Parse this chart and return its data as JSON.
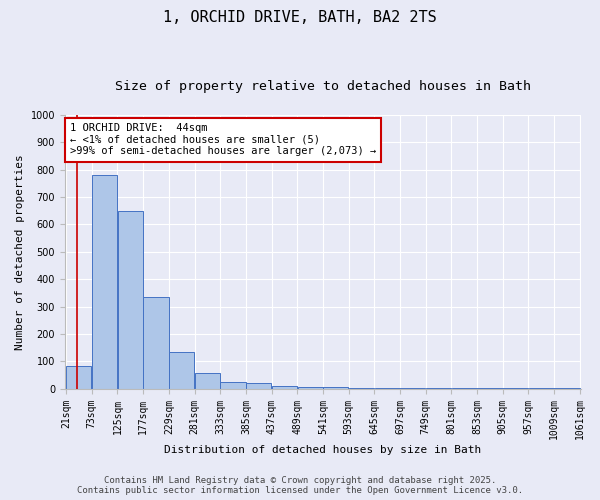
{
  "title_line1": "1, ORCHID DRIVE, BATH, BA2 2TS",
  "title_line2": "Size of property relative to detached houses in Bath",
  "xlabel": "Distribution of detached houses by size in Bath",
  "ylabel": "Number of detached properties",
  "bin_edges": [
    21,
    73,
    125,
    177,
    229,
    281,
    333,
    385,
    437,
    489,
    541,
    593,
    645,
    697,
    749,
    801,
    853,
    905,
    957,
    1009,
    1061
  ],
  "bar_heights": [
    83,
    780,
    648,
    333,
    135,
    58,
    25,
    20,
    10,
    7,
    5,
    4,
    3,
    3,
    2,
    2,
    2,
    1,
    1,
    1
  ],
  "bar_color": "#aec6e8",
  "bar_edge_color": "#4472c4",
  "background_color": "#e8eaf6",
  "grid_color": "#ffffff",
  "property_size": 44,
  "annotation_text": "1 ORCHID DRIVE:  44sqm\n← <1% of detached houses are smaller (5)\n>99% of semi-detached houses are larger (2,073) →",
  "annotation_box_color": "#ffffff",
  "annotation_box_edge": "#cc0000",
  "red_line_color": "#cc0000",
  "ylim": [
    0,
    1000
  ],
  "yticks": [
    0,
    100,
    200,
    300,
    400,
    500,
    600,
    700,
    800,
    900,
    1000
  ],
  "footer_line1": "Contains HM Land Registry data © Crown copyright and database right 2025.",
  "footer_line2": "Contains public sector information licensed under the Open Government Licence v3.0.",
  "title_fontsize": 11,
  "subtitle_fontsize": 9.5,
  "axis_label_fontsize": 8,
  "tick_fontsize": 7,
  "annotation_fontsize": 7.5,
  "footer_fontsize": 6.5
}
